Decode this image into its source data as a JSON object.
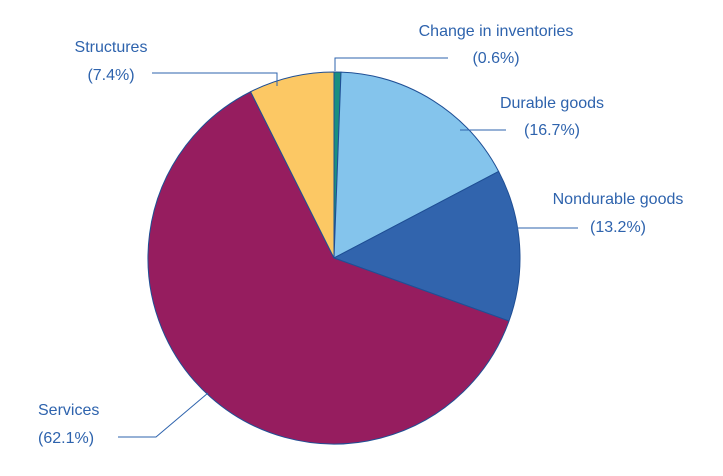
{
  "chart_data": {
    "type": "pie",
    "title": "",
    "slices": [
      {
        "label": "Change in inventories",
        "pct_label": "(0.6%)",
        "value": 0.6,
        "color": "#1a8f80"
      },
      {
        "label": "Durable goods",
        "pct_label": "(16.7%)",
        "value": 16.7,
        "color": "#84c4ec"
      },
      {
        "label": "Nondurable goods",
        "pct_label": "(13.2%)",
        "value": 13.2,
        "color": "#3164ad"
      },
      {
        "label": "Services",
        "pct_label": "(62.1%)",
        "value": 62.1,
        "color": "#961d5f"
      },
      {
        "label": "Structures",
        "pct_label": "(7.4%)",
        "value": 7.4,
        "color": "#fcc864"
      }
    ],
    "label_color": "#2e63ad",
    "edge_color": "#1f4f95"
  }
}
